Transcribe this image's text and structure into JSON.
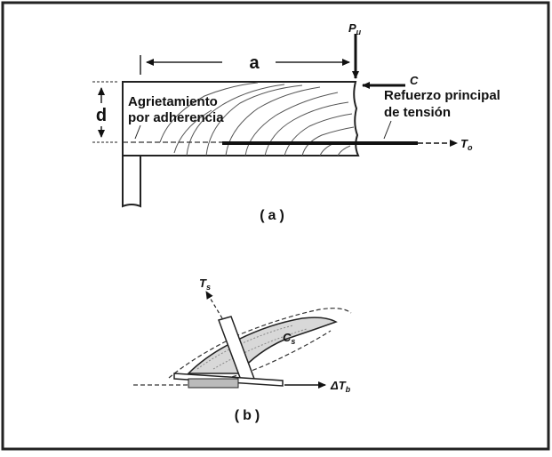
{
  "figure_a": {
    "label_a": "a",
    "label_d": "d",
    "load": {
      "symbol": "P",
      "subscript": "u"
    },
    "compression": {
      "symbol": "C"
    },
    "tension": {
      "symbol": "T",
      "subscript": "o"
    },
    "bond_cracking": {
      "line1": "Agrietamiento",
      "line2": "por adherencia"
    },
    "main_reinforcement": {
      "line1": "Refuerzo principal",
      "line2": "de tensión"
    },
    "caption": "(a)"
  },
  "figure_b": {
    "stirrup_force": {
      "symbol": "T",
      "subscript": "s"
    },
    "strut_force": {
      "symbol": "C",
      "subscript": "s"
    },
    "delta_tension": {
      "symbol": "ΔT",
      "subscript": "b"
    },
    "caption": "(b)"
  }
}
